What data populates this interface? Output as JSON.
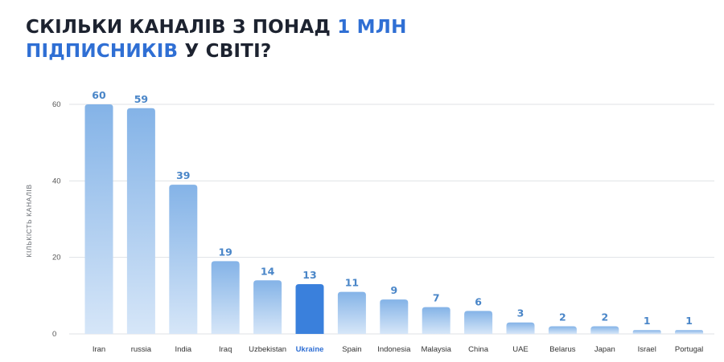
{
  "title": {
    "line1_part1": "СКІЛЬКИ КАНАЛІВ З ПОНАД ",
    "line1_accent": "1 МЛН",
    "line2_accent": "ПІДПИСНИКІВ",
    "line2_part2": " У СВІТІ?"
  },
  "colors": {
    "accent": "#2f6fd4",
    "bar_top": "#84b3e7",
    "bar_bottom": "#d6e6f8",
    "highlight_bar": "#3a80dc",
    "value_label": "#4a86c8"
  },
  "chart_data": {
    "type": "bar",
    "ylabel": "КІЛЬКІСТЬ КАНАЛІВ",
    "xlabel": "",
    "ylim": [
      0,
      60
    ],
    "yticks": [
      0,
      20,
      40,
      60
    ],
    "grid": true,
    "categories": [
      "Iran",
      "russia",
      "India",
      "Iraq",
      "Uzbekistan",
      "Ukraine",
      "Spain",
      "Indonesia",
      "Malaysia",
      "China",
      "UAE",
      "Belarus",
      "Japan",
      "Israel",
      "Portugal"
    ],
    "values": [
      60,
      59,
      39,
      19,
      14,
      13,
      11,
      9,
      7,
      6,
      3,
      2,
      2,
      1,
      1
    ],
    "highlighted_category": "Ukraine"
  }
}
